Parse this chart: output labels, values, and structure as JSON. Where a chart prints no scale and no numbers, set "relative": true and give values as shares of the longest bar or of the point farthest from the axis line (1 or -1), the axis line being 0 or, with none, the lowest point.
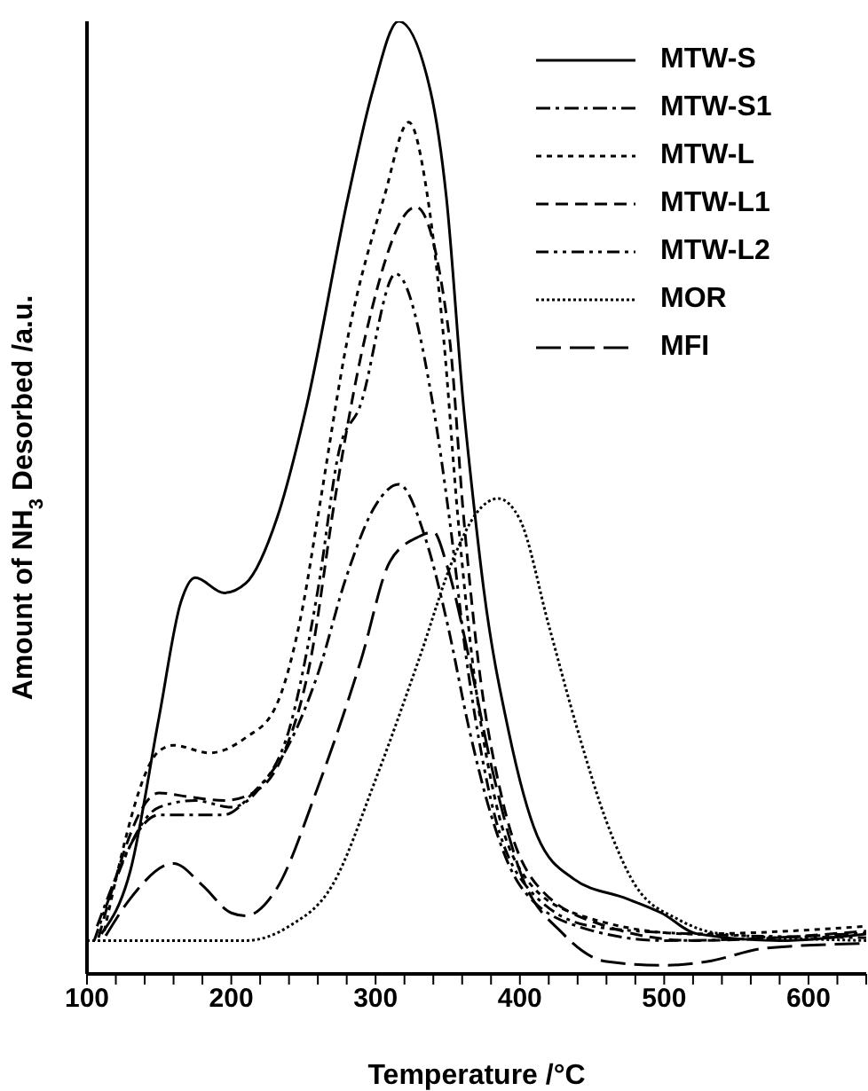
{
  "chart_data": {
    "type": "line",
    "relative": true,
    "xlabel": "Temperature /°C",
    "ylabel": "Amount of NH$_{3}$ Desorbed /a.u.",
    "xlim": [
      100,
      640
    ],
    "xticks": [
      100,
      {
        "value": 120,
        "label": null
      },
      {
        "value": 140,
        "label": null
      },
      {
        "value": 160,
        "label": null
      },
      {
        "value": 180,
        "label": null
      },
      200,
      {
        "value": 220,
        "label": null
      },
      {
        "value": 240,
        "label": null
      },
      {
        "value": 260,
        "label": null
      },
      {
        "value": 280,
        "label": null
      },
      300,
      {
        "value": 320,
        "label": null
      },
      {
        "value": 340,
        "label": null
      },
      {
        "value": 360,
        "label": null
      },
      {
        "value": 380,
        "label": null
      },
      400,
      {
        "value": 420,
        "label": null
      },
      {
        "value": 440,
        "label": null
      },
      {
        "value": 460,
        "label": null
      },
      {
        "value": 480,
        "label": null
      },
      500,
      {
        "value": 520,
        "label": null
      },
      {
        "value": 540,
        "label": null
      },
      {
        "value": 560,
        "label": null
      },
      {
        "value": 580,
        "label": null
      },
      600,
      {
        "value": 620,
        "label": null
      },
      {
        "value": 640,
        "label": null
      }
    ],
    "legend": "top right",
    "series": [
      {
        "name": "MTW-S",
        "color": "#000000",
        "line_style": "solid",
        "x": [
          110,
          130,
          150,
          165,
          175,
          195,
          210,
          232,
          252,
          281,
          298,
          316,
          338,
          349,
          361,
          369,
          375,
          392,
          412,
          437,
          474,
          498,
          523,
          580,
          640
        ],
        "values": [
          0.042,
          0.108,
          0.27,
          0.39,
          0.416,
          0.4,
          0.41,
          0.48,
          0.595,
          0.816,
          0.927,
          1,
          0.927,
          0.816,
          0.595,
          0.48,
          0.403,
          0.256,
          0.145,
          0.1,
          0.079,
          0.064,
          0.042,
          0.035,
          0.042
        ]
      },
      {
        "name": "MTW-S1",
        "color": "#000000",
        "line_style": "dashdot",
        "x": [
          107,
          150,
          170,
          195,
          215,
          240,
          260,
          280,
          300,
          316,
          335,
          350,
          365,
          380,
          400,
          440,
          500,
          640
        ],
        "values": [
          0.05,
          0.167,
          0.167,
          0.167,
          0.19,
          0.241,
          0.315,
          0.418,
          0.492,
          0.514,
          0.455,
          0.366,
          0.256,
          0.167,
          0.093,
          0.05,
          0.035,
          0.043
        ]
      },
      {
        "name": "MTW-L",
        "color": "#000000",
        "line_style": "dotted",
        "x": [
          112,
          150,
          160,
          185,
          210,
          230,
          250,
          260,
          281,
          306,
          323,
          336,
          347,
          357,
          367,
          383,
          400,
          437,
          520,
          640
        ],
        "values": [
          0.045,
          0.234,
          0.24,
          0.232,
          0.248,
          0.278,
          0.389,
          0.48,
          0.67,
          0.816,
          0.894,
          0.816,
          0.67,
          0.48,
          0.33,
          0.182,
          0.11,
          0.064,
          0.042,
          0.05
        ]
      },
      {
        "name": "MTW-L1",
        "color": "#000000",
        "line_style": "dashed",
        "x": [
          108,
          150,
          170,
          195,
          215,
          235,
          255,
          272,
          293,
          328,
          351,
          361,
          371,
          388,
          412,
          460,
          520,
          640
        ],
        "values": [
          0.038,
          0.19,
          0.186,
          0.182,
          0.19,
          0.227,
          0.33,
          0.5,
          0.67,
          0.805,
          0.67,
          0.48,
          0.33,
          0.182,
          0.093,
          0.05,
          0.035,
          0.045
        ]
      },
      {
        "name": "MTW-L2",
        "color": "#000000",
        "line_style": "dashdotdot",
        "x": [
          105,
          150,
          175,
          200,
          220,
          240,
          260,
          275,
          289,
          314,
          340,
          351,
          363,
          380,
          404,
          450,
          520,
          640
        ],
        "values": [
          0.035,
          0.175,
          0.182,
          0.175,
          0.196,
          0.256,
          0.403,
          0.551,
          0.595,
          0.735,
          0.595,
          0.48,
          0.33,
          0.182,
          0.093,
          0.05,
          0.042,
          0.038
        ]
      },
      {
        "name": "MOR",
        "color": "#000000",
        "line_style": "finedotted",
        "x": [
          100,
          210,
          240,
          270,
          300,
          330,
          355,
          370,
          385,
          400,
          420,
          440,
          460,
          480,
          510,
          540,
          640
        ],
        "values": [
          0.035,
          0.035,
          0.05,
          0.093,
          0.204,
          0.33,
          0.44,
          0.484,
          0.499,
          0.477,
          0.366,
          0.256,
          0.16,
          0.093,
          0.057,
          0.042,
          0.035
        ]
      },
      {
        "name": "MFI",
        "color": "#000000",
        "line_style": "longdash",
        "x": [
          113,
          130,
          160,
          180,
          200,
          210,
          230,
          260,
          290,
          310,
          330,
          340,
          350,
          365,
          380,
          400,
          430,
          460,
          500,
          530,
          570,
          640
        ],
        "values": [
          0.04,
          0.079,
          0.116,
          0.093,
          0.064,
          0.061,
          0.086,
          0.196,
          0.33,
          0.433,
          0.459,
          0.464,
          0.426,
          0.33,
          0.22,
          0.108,
          0.042,
          0.013,
          0.009,
          0.013,
          0.027,
          0.032
        ]
      }
    ]
  }
}
